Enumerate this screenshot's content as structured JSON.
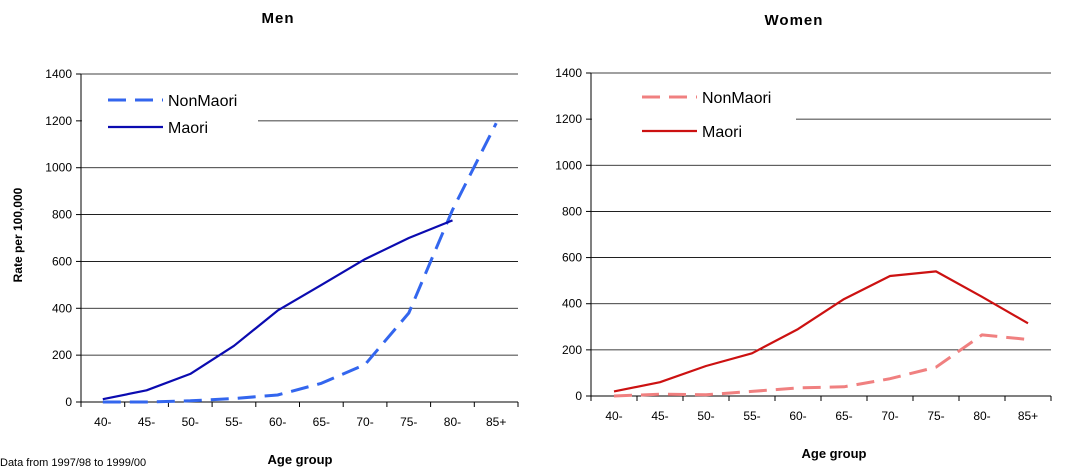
{
  "footnote": "Data from 1997/98 to 1999/00",
  "chart_data": [
    {
      "type": "line",
      "title": "Men",
      "xlabel": "Age group",
      "ylabel": "Rate per 100,000",
      "categories": [
        "40-",
        "45-",
        "50-",
        "55-",
        "60-",
        "65-",
        "70-",
        "75-",
        "80-",
        "85+"
      ],
      "ylim": [
        0,
        1400
      ],
      "yticks": [
        0,
        200,
        400,
        600,
        800,
        1000,
        1200,
        1400
      ],
      "grid": true,
      "legend_placement": "top-left",
      "series": [
        {
          "name": "NonMaori",
          "style": "dashed",
          "color": "#3366ee",
          "values": [
            0,
            0,
            5,
            15,
            30,
            80,
            160,
            380,
            820,
            1190
          ]
        },
        {
          "name": "Maori",
          "style": "solid",
          "color": "#0b0bb0",
          "values": [
            12,
            50,
            120,
            240,
            390,
            500,
            610,
            700,
            775,
            null
          ]
        }
      ]
    },
    {
      "type": "line",
      "title": "Women",
      "xlabel": "Age group",
      "ylabel": "",
      "categories": [
        "40-",
        "45-",
        "50-",
        "55-",
        "60-",
        "65-",
        "70-",
        "75-",
        "80-",
        "85+"
      ],
      "ylim": [
        0,
        1400
      ],
      "yticks": [
        0,
        200,
        400,
        600,
        800,
        1000,
        1200,
        1400
      ],
      "grid": true,
      "legend_placement": "top-left",
      "series": [
        {
          "name": "NonMaori",
          "style": "dashed",
          "color": "#f08080",
          "values": [
            0,
            8,
            5,
            20,
            35,
            40,
            75,
            125,
            265,
            245
          ]
        },
        {
          "name": "Maori",
          "style": "solid",
          "color": "#cc1111",
          "values": [
            20,
            60,
            130,
            185,
            290,
            420,
            520,
            540,
            430,
            315
          ]
        }
      ]
    }
  ]
}
